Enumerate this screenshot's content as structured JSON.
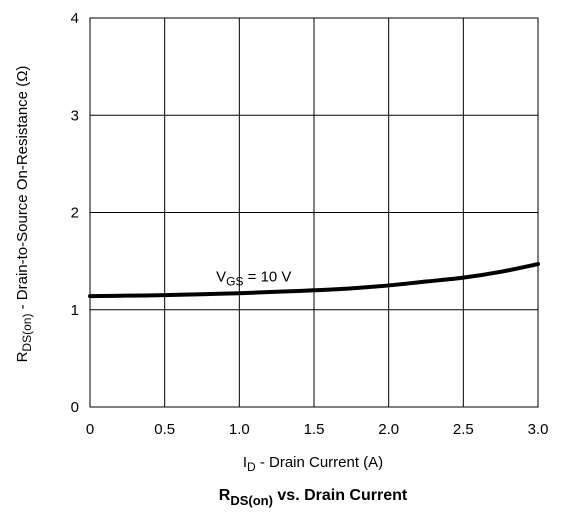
{
  "chart_data": {
    "type": "line",
    "title": {
      "main": "R",
      "sub": "DS(on)",
      "suffix": " vs. Drain Current"
    },
    "xlabel": {
      "main": "I",
      "sub": "D",
      "suffix": "  -  Drain Current (A)"
    },
    "ylabel": {
      "main": "R",
      "sub": "DS(on)",
      "suffix": " - Drain-to-Source On-Resistance (Ω)"
    },
    "xlim": [
      0,
      3.0
    ],
    "ylim": [
      0,
      4
    ],
    "x_ticks": [
      0,
      0.5,
      1.0,
      1.5,
      2.0,
      2.5,
      3.0
    ],
    "x_tick_labels": [
      "0",
      "0.5",
      "1.0",
      "1.5",
      "2.0",
      "2.5",
      "3.0"
    ],
    "y_ticks": [
      0,
      1,
      2,
      3,
      4
    ],
    "y_tick_labels": [
      "0",
      "1",
      "2",
      "3",
      "4"
    ],
    "grid": true,
    "series": [
      {
        "x": [
          0,
          0.25,
          0.5,
          0.75,
          1.0,
          1.25,
          1.5,
          1.75,
          2.0,
          2.25,
          2.5,
          2.75,
          3.0
        ],
        "y": [
          1.14,
          1.145,
          1.15,
          1.16,
          1.17,
          1.185,
          1.2,
          1.22,
          1.25,
          1.29,
          1.33,
          1.39,
          1.47
        ],
        "color": "#000000"
      }
    ],
    "annotations": [
      {
        "main": "V",
        "sub": "GS",
        "suffix": " = 10 V",
        "x": 1.3,
        "y": 1.25
      }
    ]
  }
}
